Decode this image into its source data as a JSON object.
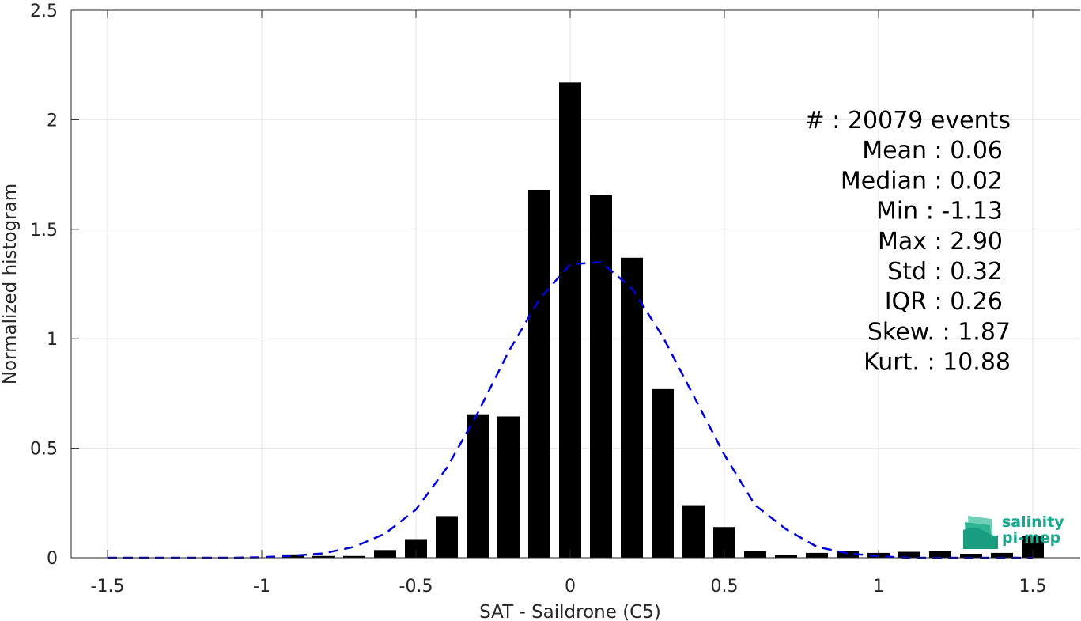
{
  "chart_data": {
    "type": "bar",
    "xlabel": "SAT - Saildrone (C5)",
    "ylabel": "Normalized histogram",
    "xlim": [
      -1.5,
      1.5
    ],
    "ylim": [
      0,
      2.5
    ],
    "xticks": [
      "-1.5",
      "-1",
      "-0.5",
      "0",
      "0.5",
      "1",
      "1.5"
    ],
    "yticks": [
      "0",
      "0.5",
      "1",
      "1.5",
      "2",
      "2.5"
    ],
    "grid": true,
    "bar_color": "#000000",
    "bins": [
      {
        "x": -0.9,
        "y": 0.015
      },
      {
        "x": -0.8,
        "y": 0.008
      },
      {
        "x": -0.7,
        "y": 0.008
      },
      {
        "x": -0.6,
        "y": 0.035
      },
      {
        "x": -0.5,
        "y": 0.085
      },
      {
        "x": -0.4,
        "y": 0.19
      },
      {
        "x": -0.3,
        "y": 0.655
      },
      {
        "x": -0.2,
        "y": 0.645
      },
      {
        "x": -0.1,
        "y": 1.68
      },
      {
        "x": 0.0,
        "y": 2.17
      },
      {
        "x": 0.1,
        "y": 1.655
      },
      {
        "x": 0.2,
        "y": 1.37
      },
      {
        "x": 0.3,
        "y": 0.77
      },
      {
        "x": 0.4,
        "y": 0.24
      },
      {
        "x": 0.5,
        "y": 0.14
      },
      {
        "x": 0.6,
        "y": 0.03
      },
      {
        "x": 0.7,
        "y": 0.012
      },
      {
        "x": 0.8,
        "y": 0.022
      },
      {
        "x": 0.9,
        "y": 0.03
      },
      {
        "x": 1.0,
        "y": 0.022
      },
      {
        "x": 1.1,
        "y": 0.027
      },
      {
        "x": 1.2,
        "y": 0.03
      },
      {
        "x": 1.3,
        "y": 0.018
      },
      {
        "x": 1.4,
        "y": 0.022
      },
      {
        "x": 1.5,
        "y": 0.1
      }
    ],
    "series": [
      {
        "type": "line",
        "style": "dashed",
        "color": "#0000dd",
        "x": [
          -1.5,
          -1.4,
          -1.3,
          -1.2,
          -1.1,
          -1.0,
          -0.9,
          -0.8,
          -0.7,
          -0.6,
          -0.5,
          -0.4,
          -0.3,
          -0.2,
          -0.1,
          0.0,
          0.1,
          0.2,
          0.3,
          0.4,
          0.5,
          0.6,
          0.7,
          0.8,
          0.9,
          1.0,
          1.1,
          1.2,
          1.3,
          1.4,
          1.5
        ],
        "y": [
          0.0,
          0.0,
          0.0,
          0.0,
          0.0,
          0.002,
          0.009,
          0.02,
          0.05,
          0.11,
          0.22,
          0.41,
          0.66,
          0.94,
          1.18,
          1.34,
          1.35,
          1.23,
          1.01,
          0.74,
          0.47,
          0.24,
          0.13,
          0.05,
          0.02,
          0.007,
          0.0,
          0.0,
          0.0,
          0.0,
          0.0
        ]
      }
    ],
    "annotations": [
      "#  : 20079 events",
      "Mean : 0.06",
      "Median : 0.02",
      "Min : -1.13",
      "Max : 2.90",
      "Std : 0.32",
      "IQR : 0.26",
      "Skew. : 1.87",
      "Kurt. : 10.88"
    ]
  },
  "logo": {
    "line1": "salinity",
    "line2": "pi-mep",
    "color": "#19a98e",
    "icon": "salinity-waves-icon"
  }
}
